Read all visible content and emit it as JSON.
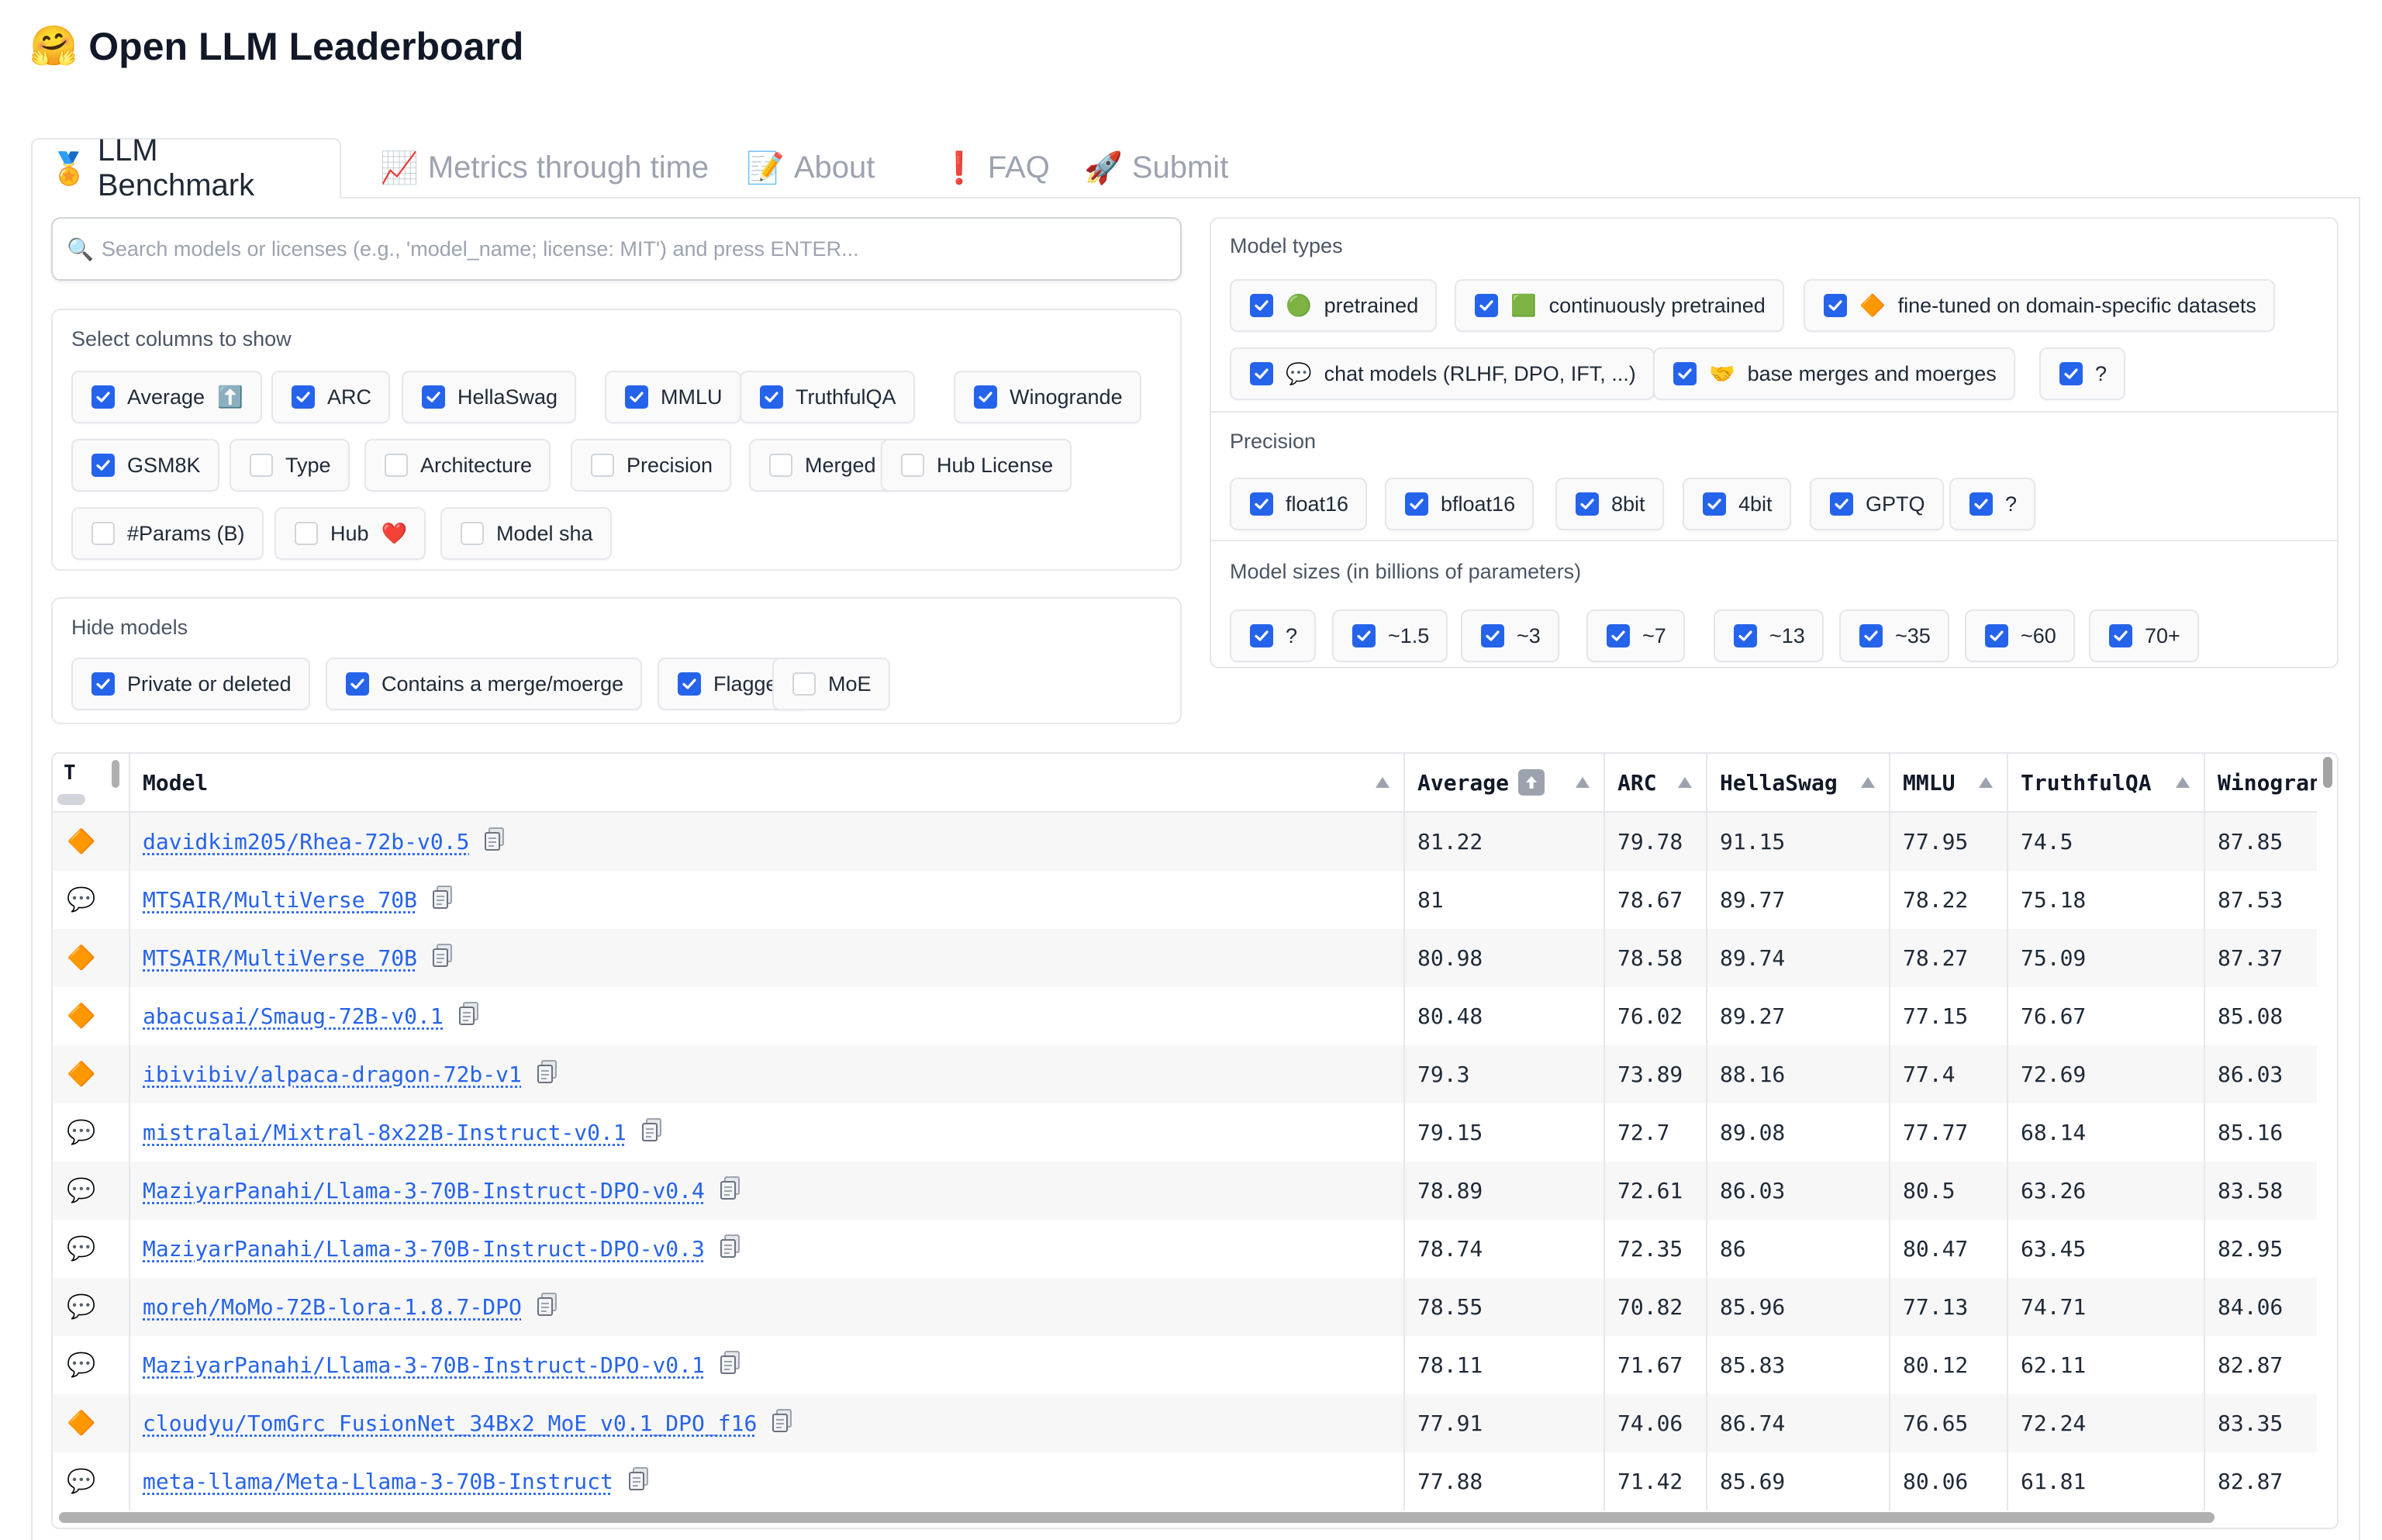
{
  "app": {
    "title_emoji": "🤗",
    "title": "Open LLM Leaderboard"
  },
  "tabs": [
    {
      "icon": "🏅",
      "label": "LLM Benchmark",
      "active": true
    },
    {
      "icon": "📈",
      "label": "Metrics through time",
      "active": false
    },
    {
      "icon": "📝",
      "label": "About",
      "active": false
    },
    {
      "icon": "❗",
      "label": "FAQ",
      "active": false
    },
    {
      "icon": "🚀",
      "label": "Submit",
      "active": false
    }
  ],
  "search": {
    "placeholder": "Search models or licenses (e.g., 'model_name; license: MIT') and press ENTER...",
    "value": ""
  },
  "select_columns": {
    "label": "Select columns to show",
    "options": [
      {
        "label": "Average",
        "icon": "⬆️",
        "checked": true
      },
      {
        "label": "ARC",
        "checked": true
      },
      {
        "label": "HellaSwag",
        "checked": true
      },
      {
        "label": "MMLU",
        "checked": true
      },
      {
        "label": "TruthfulQA",
        "checked": true
      },
      {
        "label": "Winogrande",
        "checked": true
      },
      {
        "label": "GSM8K",
        "checked": true
      },
      {
        "label": "Type",
        "checked": false
      },
      {
        "label": "Architecture",
        "checked": false
      },
      {
        "label": "Precision",
        "checked": false
      },
      {
        "label": "Merged",
        "checked": false
      },
      {
        "label": "Hub License",
        "checked": false
      },
      {
        "label": "#Params (B)",
        "checked": false
      },
      {
        "label": "Hub",
        "icon": "❤️",
        "checked": false
      },
      {
        "label": "Model sha",
        "checked": false
      }
    ]
  },
  "hide_models": {
    "label": "Hide models",
    "options": [
      {
        "label": "Private or deleted",
        "checked": true
      },
      {
        "label": "Contains a merge/moerge",
        "checked": true
      },
      {
        "label": "Flagged",
        "checked": true
      },
      {
        "label": "MoE",
        "checked": false
      }
    ]
  },
  "model_types": {
    "label": "Model types",
    "options": [
      {
        "emoji": "🟢",
        "label": "pretrained",
        "checked": true
      },
      {
        "emoji": "🟩",
        "label": "continuously pretrained",
        "checked": true
      },
      {
        "emoji": "🔶",
        "label": "fine-tuned on domain-specific datasets",
        "checked": true
      },
      {
        "emoji": "💬",
        "label": "chat models (RLHF, DPO, IFT, ...)",
        "checked": true
      },
      {
        "emoji": "🤝",
        "label": "base merges and moerges",
        "checked": true
      },
      {
        "emoji": "",
        "label": "?",
        "checked": true
      }
    ]
  },
  "precision": {
    "label": "Precision",
    "options": [
      {
        "label": "float16",
        "checked": true
      },
      {
        "label": "bfloat16",
        "checked": true
      },
      {
        "label": "8bit",
        "checked": true
      },
      {
        "label": "4bit",
        "checked": true
      },
      {
        "label": "GPTQ",
        "checked": true
      },
      {
        "label": "?",
        "checked": true
      }
    ]
  },
  "model_sizes": {
    "label": "Model sizes (in billions of parameters)",
    "options": [
      {
        "label": "?",
        "checked": true
      },
      {
        "label": "~1.5",
        "checked": true
      },
      {
        "label": "~3",
        "checked": true
      },
      {
        "label": "~7",
        "checked": true
      },
      {
        "label": "~13",
        "checked": true
      },
      {
        "label": "~35",
        "checked": true
      },
      {
        "label": "~60",
        "checked": true
      },
      {
        "label": "70+",
        "checked": true
      }
    ]
  },
  "table": {
    "columns": [
      "T",
      "Model",
      "Average",
      "ARC",
      "HellaSwag",
      "MMLU",
      "TruthfulQA",
      "Winogrande"
    ],
    "average_icon": "⬆️",
    "rows": [
      {
        "type": "🔶",
        "model": "davidkim205/Rhea-72b-v0.5",
        "average": "81.22",
        "arc": "79.78",
        "hellaswag": "91.15",
        "mmlu": "77.95",
        "truthfulqa": "74.5",
        "winogrande": "87.85"
      },
      {
        "type": "💬",
        "model": "MTSAIR/MultiVerse_70B",
        "average": "81",
        "arc": "78.67",
        "hellaswag": "89.77",
        "mmlu": "78.22",
        "truthfulqa": "75.18",
        "winogrande": "87.53"
      },
      {
        "type": "🔶",
        "model": "MTSAIR/MultiVerse_70B",
        "average": "80.98",
        "arc": "78.58",
        "hellaswag": "89.74",
        "mmlu": "78.27",
        "truthfulqa": "75.09",
        "winogrande": "87.37"
      },
      {
        "type": "🔶",
        "model": "abacusai/Smaug-72B-v0.1",
        "average": "80.48",
        "arc": "76.02",
        "hellaswag": "89.27",
        "mmlu": "77.15",
        "truthfulqa": "76.67",
        "winogrande": "85.08"
      },
      {
        "type": "🔶",
        "model": "ibivibiv/alpaca-dragon-72b-v1",
        "average": "79.3",
        "arc": "73.89",
        "hellaswag": "88.16",
        "mmlu": "77.4",
        "truthfulqa": "72.69",
        "winogrande": "86.03"
      },
      {
        "type": "💬",
        "model": "mistralai/Mixtral-8x22B-Instruct-v0.1",
        "average": "79.15",
        "arc": "72.7",
        "hellaswag": "89.08",
        "mmlu": "77.77",
        "truthfulqa": "68.14",
        "winogrande": "85.16"
      },
      {
        "type": "💬",
        "model": "MaziyarPanahi/Llama-3-70B-Instruct-DPO-v0.4",
        "average": "78.89",
        "arc": "72.61",
        "hellaswag": "86.03",
        "mmlu": "80.5",
        "truthfulqa": "63.26",
        "winogrande": "83.58"
      },
      {
        "type": "💬",
        "model": "MaziyarPanahi/Llama-3-70B-Instruct-DPO-v0.3",
        "average": "78.74",
        "arc": "72.35",
        "hellaswag": "86",
        "mmlu": "80.47",
        "truthfulqa": "63.45",
        "winogrande": "82.95"
      },
      {
        "type": "💬",
        "model": "moreh/MoMo-72B-lora-1.8.7-DPO",
        "average": "78.55",
        "arc": "70.82",
        "hellaswag": "85.96",
        "mmlu": "77.13",
        "truthfulqa": "74.71",
        "winogrande": "84.06"
      },
      {
        "type": "💬",
        "model": "MaziyarPanahi/Llama-3-70B-Instruct-DPO-v0.1",
        "average": "78.11",
        "arc": "71.67",
        "hellaswag": "85.83",
        "mmlu": "80.12",
        "truthfulqa": "62.11",
        "winogrande": "82.87"
      },
      {
        "type": "🔶",
        "model": "cloudyu/TomGrc_FusionNet_34Bx2_MoE_v0.1_DPO_f16",
        "average": "77.91",
        "arc": "74.06",
        "hellaswag": "86.74",
        "mmlu": "76.65",
        "truthfulqa": "72.24",
        "winogrande": "83.35"
      },
      {
        "type": "💬",
        "model": "meta-llama/Meta-Llama-3-70B-Instruct",
        "average": "77.88",
        "arc": "71.42",
        "hellaswag": "85.69",
        "mmlu": "80.06",
        "truthfulqa": "61.81",
        "winogrande": "82.87"
      }
    ]
  }
}
